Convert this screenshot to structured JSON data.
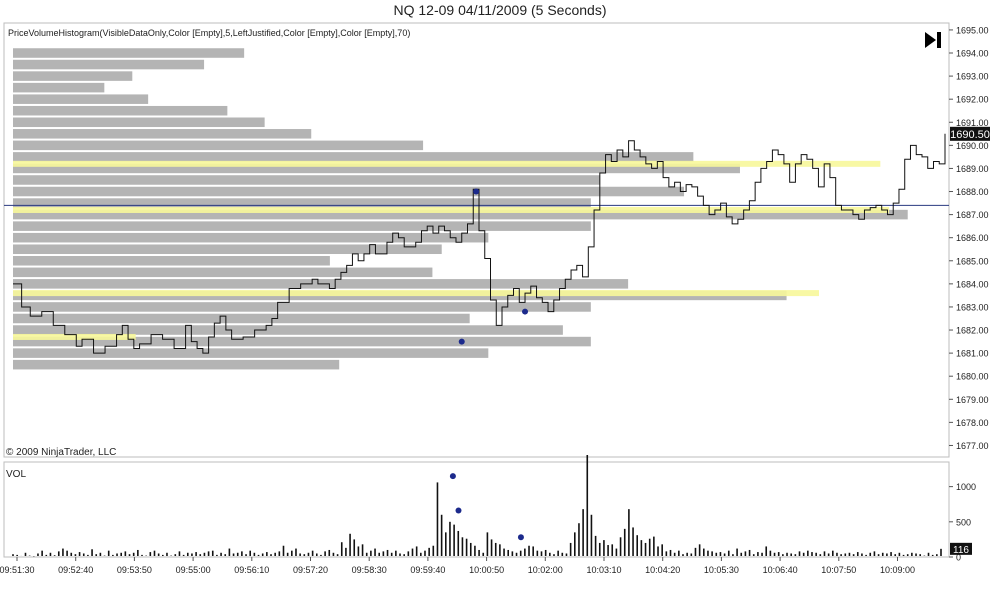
{
  "header": {
    "title": "NQ 12-09  04/11/2009 (5 Seconds)"
  },
  "indicator_label": "PriceVolumeHistogram(VisibleDataOnly,Color [Empty],5,LeftJustified,Color [Empty],Color [Empty],70)",
  "copyright": "© 2009 NinjaTrader, LLC",
  "vol_label": "VOL",
  "icons": {
    "jump_to_end": "skip-to-end-icon"
  },
  "colors": {
    "histogram": "#b4b4b4",
    "highlight": "#f7f79a",
    "price_line": "#111111",
    "marker": "#1c2a8c",
    "last_price_bg": "#111111",
    "crosshair": "#2a3a80"
  },
  "chart_data": [
    {
      "type": "line",
      "subtype": "price-bars with price-volume histogram",
      "title": "NQ 12-09  04/11/2009 (5 Seconds)",
      "ylim": [
        1676.5,
        1695.3
      ],
      "y_ticks": [
        "1695.00",
        "1694.00",
        "1693.00",
        "1692.00",
        "1691.00",
        "1690.00",
        "1689.00",
        "1688.00",
        "1687.00",
        "1686.00",
        "1685.00",
        "1684.00",
        "1683.00",
        "1682.00",
        "1681.00",
        "1680.00",
        "1679.00",
        "1678.00",
        "1677.00"
      ],
      "last_price": "1690.50",
      "crosshair_price": 1687.4,
      "x_ticks": [
        "09:51:30",
        "09:52:40",
        "09:53:50",
        "09:55:00",
        "09:56:10",
        "09:57:20",
        "09:58:30",
        "09:59:40",
        "10:00:50",
        "10:02:00",
        "10:03:10",
        "10:04:20",
        "10:05:30",
        "10:06:40",
        "10:07:50",
        "10:09:00"
      ],
      "price_path": [
        [
          0,
          1684
        ],
        [
          1.5,
          1683
        ],
        [
          3,
          1682.6
        ],
        [
          5,
          1682.8
        ],
        [
          7,
          1682.2
        ],
        [
          9,
          1681.8
        ],
        [
          11,
          1681.3
        ],
        [
          12,
          1681.6
        ],
        [
          14,
          1681.0
        ],
        [
          16,
          1681.3
        ],
        [
          18,
          1681.8
        ],
        [
          19,
          1682.2
        ],
        [
          20,
          1681.6
        ],
        [
          21,
          1681.2
        ],
        [
          22,
          1681.4
        ],
        [
          24,
          1681.8
        ],
        [
          26,
          1681.6
        ],
        [
          28,
          1681.2
        ],
        [
          30,
          1682.2
        ],
        [
          31,
          1681.5
        ],
        [
          32,
          1681.2
        ],
        [
          33,
          1681.0
        ],
        [
          34,
          1681.7
        ],
        [
          35,
          1682.3
        ],
        [
          36,
          1682.6
        ],
        [
          37,
          1682.0
        ],
        [
          38,
          1681.6
        ],
        [
          40,
          1681.7
        ],
        [
          42,
          1682.0
        ],
        [
          44,
          1682.2
        ],
        [
          45,
          1682.5
        ],
        [
          46,
          1683.2
        ],
        [
          48,
          1683.8
        ],
        [
          50,
          1684.0
        ],
        [
          52,
          1684.2
        ],
        [
          53,
          1684.0
        ],
        [
          55,
          1683.8
        ],
        [
          56,
          1684.2
        ],
        [
          57,
          1684.5
        ],
        [
          58,
          1684.8
        ],
        [
          59,
          1685.3
        ],
        [
          60,
          1685.0
        ],
        [
          61,
          1685.3
        ],
        [
          62,
          1685.7
        ],
        [
          63,
          1685.3
        ],
        [
          65,
          1685.8
        ],
        [
          66,
          1686.2
        ],
        [
          67,
          1686.0
        ],
        [
          68,
          1685.6
        ],
        [
          70,
          1685.8
        ],
        [
          71,
          1686.3
        ],
        [
          72,
          1686.5
        ],
        [
          73,
          1686.2
        ],
        [
          74,
          1686.5
        ],
        [
          75,
          1686.3
        ],
        [
          76,
          1686.0
        ],
        [
          77,
          1685.8
        ],
        [
          78,
          1686.2
        ],
        [
          79,
          1686.6
        ],
        [
          80,
          1688.1
        ],
        [
          81,
          1686.3
        ],
        [
          82,
          1685.1
        ],
        [
          83,
          1683.3
        ],
        [
          84,
          1682.2
        ],
        [
          85,
          1683.0
        ],
        [
          86,
          1683.5
        ],
        [
          87,
          1683.8
        ],
        [
          88,
          1683.2
        ],
        [
          89,
          1683.6
        ],
        [
          90,
          1683.9
        ],
        [
          91,
          1683.4
        ],
        [
          92,
          1683.2
        ],
        [
          93,
          1682.8
        ],
        [
          94,
          1683.3
        ],
        [
          95,
          1683.8
        ],
        [
          96,
          1684.2
        ],
        [
          97,
          1684.6
        ],
        [
          98,
          1684.8
        ],
        [
          99,
          1684.3
        ],
        [
          100,
          1685.6
        ],
        [
          101,
          1687.2
        ],
        [
          102,
          1688.8
        ],
        [
          103,
          1689.6
        ],
        [
          104,
          1689.3
        ],
        [
          105,
          1689.8
        ],
        [
          106,
          1689.5
        ],
        [
          107,
          1690.2
        ],
        [
          108,
          1689.8
        ],
        [
          109,
          1689.5
        ],
        [
          110,
          1689.2
        ],
        [
          111,
          1689.0
        ],
        [
          112,
          1689.3
        ],
        [
          113,
          1688.6
        ],
        [
          114,
          1688.2
        ],
        [
          115,
          1688.4
        ],
        [
          116,
          1688.0
        ],
        [
          117,
          1688.3
        ],
        [
          118,
          1688.2
        ],
        [
          119,
          1687.8
        ],
        [
          120,
          1687.4
        ],
        [
          121,
          1687.0
        ],
        [
          122,
          1687.2
        ],
        [
          123,
          1687.5
        ],
        [
          124,
          1686.9
        ],
        [
          125,
          1686.6
        ],
        [
          126,
          1686.8
        ],
        [
          127,
          1687.2
        ],
        [
          128,
          1687.6
        ],
        [
          129,
          1688.4
        ],
        [
          130,
          1689.0
        ],
        [
          131,
          1689.3
        ],
        [
          132,
          1689.8
        ],
        [
          133,
          1689.6
        ],
        [
          134,
          1689.2
        ],
        [
          135,
          1688.4
        ],
        [
          136,
          1689.2
        ],
        [
          137,
          1689.6
        ],
        [
          138,
          1689.4
        ],
        [
          139,
          1689.0
        ],
        [
          140,
          1688.2
        ],
        [
          141,
          1689.2
        ],
        [
          142,
          1688.6
        ],
        [
          143,
          1687.4
        ],
        [
          144,
          1687.2
        ],
        [
          145,
          1687.2
        ],
        [
          146,
          1687.0
        ],
        [
          147,
          1686.8
        ],
        [
          148,
          1687.2
        ],
        [
          149,
          1687.3
        ],
        [
          150,
          1687.4
        ],
        [
          151,
          1687.2
        ],
        [
          152,
          1687.0
        ],
        [
          153,
          1687.5
        ],
        [
          154,
          1688.1
        ],
        [
          155,
          1689.4
        ],
        [
          156,
          1690.0
        ],
        [
          157,
          1689.6
        ],
        [
          158,
          1689.5
        ],
        [
          159,
          1689.0
        ],
        [
          160,
          1689.3
        ],
        [
          161,
          1689.2
        ],
        [
          162,
          1690.5
        ]
      ],
      "price_x_range": [
        0,
        162
      ],
      "histogram": [
        {
          "price": 1694.0,
          "len": 0.248
        },
        {
          "price": 1693.5,
          "len": 0.205
        },
        {
          "price": 1693.0,
          "len": 0.128
        },
        {
          "price": 1692.5,
          "len": 0.098
        },
        {
          "price": 1692.0,
          "len": 0.145
        },
        {
          "price": 1691.5,
          "len": 0.23
        },
        {
          "price": 1691.0,
          "len": 0.27
        },
        {
          "price": 1690.5,
          "len": 0.32
        },
        {
          "price": 1690.0,
          "len": 0.44
        },
        {
          "price": 1689.5,
          "len": 0.73
        },
        {
          "price": 1689.0,
          "len": 0.78
        },
        {
          "price": 1688.5,
          "len": 0.63
        },
        {
          "price": 1688.0,
          "len": 0.72
        },
        {
          "price": 1687.5,
          "len": 0.62
        },
        {
          "price": 1687.0,
          "len": 0.96
        },
        {
          "price": 1686.5,
          "len": 0.62
        },
        {
          "price": 1686.0,
          "len": 0.51
        },
        {
          "price": 1685.5,
          "len": 0.46
        },
        {
          "price": 1685.0,
          "len": 0.34
        },
        {
          "price": 1684.5,
          "len": 0.45
        },
        {
          "price": 1684.0,
          "len": 0.66
        },
        {
          "price": 1683.5,
          "len": 0.83
        },
        {
          "price": 1683.0,
          "len": 0.62
        },
        {
          "price": 1682.5,
          "len": 0.49
        },
        {
          "price": 1682.0,
          "len": 0.59
        },
        {
          "price": 1681.5,
          "len": 0.62
        },
        {
          "price": 1681.0,
          "len": 0.51
        },
        {
          "price": 1680.5,
          "len": 0.35
        }
      ],
      "highlights": [
        {
          "price": 1689.2,
          "len": 0.99
        },
        {
          "price": 1687.2,
          "len": 1.0
        },
        {
          "price": 1683.6,
          "len": 0.92
        },
        {
          "price": 1681.7,
          "len": 0.14
        }
      ],
      "markers": [
        {
          "x": 80.5,
          "price": 1688.0
        },
        {
          "x": 78,
          "price": 1681.5
        },
        {
          "x": 89,
          "price": 1682.8
        }
      ]
    },
    {
      "type": "bar",
      "title": "VOL",
      "ylim": [
        0,
        1350
      ],
      "y_ticks": [
        "1000",
        "500",
        "0"
      ],
      "last_value": "116",
      "values": [
        40,
        30,
        15,
        60,
        20,
        10,
        50,
        90,
        30,
        60,
        25,
        80,
        120,
        90,
        60,
        40,
        70,
        50,
        30,
        110,
        40,
        60,
        20,
        90,
        30,
        50,
        60,
        80,
        40,
        60,
        100,
        30,
        20,
        70,
        90,
        50,
        30,
        60,
        20,
        40,
        80,
        30,
        60,
        50,
        70,
        40,
        60,
        80,
        90,
        30,
        60,
        40,
        120,
        50,
        60,
        80,
        40,
        90,
        60,
        30,
        50,
        70,
        40,
        60,
        80,
        160,
        60,
        90,
        120,
        50,
        40,
        60,
        90,
        50,
        30,
        80,
        100,
        60,
        40,
        210,
        130,
        330,
        250,
        150,
        180,
        60,
        90,
        120,
        60,
        80,
        100,
        60,
        90,
        50,
        40,
        80,
        120,
        150,
        60,
        90,
        130,
        160,
        1060,
        600,
        350,
        500,
        460,
        370,
        280,
        260,
        200,
        160,
        100,
        60,
        350,
        250,
        200,
        180,
        120,
        100,
        80,
        60,
        90,
        120,
        160,
        150,
        90,
        80,
        100,
        60,
        40,
        90,
        60,
        50,
        200,
        350,
        480,
        680,
        1450,
        600,
        300,
        200,
        240,
        170,
        180,
        120,
        280,
        400,
        680,
        420,
        310,
        240,
        200,
        260,
        290,
        150,
        180,
        80,
        100,
        60,
        90,
        40,
        60,
        50,
        130,
        180,
        120,
        90,
        80,
        60,
        70,
        50,
        90,
        40,
        120,
        60,
        80,
        100,
        40,
        70,
        60,
        150,
        90,
        60,
        70,
        40,
        60,
        50,
        40,
        80,
        60,
        90,
        70,
        60,
        40,
        80,
        50,
        90,
        60,
        40,
        50,
        60,
        40,
        70,
        50,
        30,
        60,
        80,
        40,
        60,
        50,
        70,
        40,
        60,
        30,
        40,
        60,
        50,
        40,
        20,
        60,
        30,
        40,
        116
      ],
      "markers": [
        1150,
        660,
        280
      ]
    }
  ]
}
